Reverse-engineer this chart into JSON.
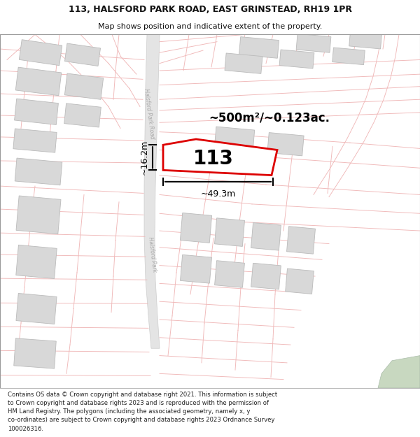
{
  "title_line1": "113, HALSFORD PARK ROAD, EAST GRINSTEAD, RH19 1PR",
  "title_line2": "Map shows position and indicative extent of the property.",
  "footer_text": "Contains OS data © Crown copyright and database right 2021. This information is subject to Crown copyright and database rights 2023 and is reproduced with the permission of\nHM Land Registry. The polygons (including the associated geometry, namely x, y co-ordinates) are subject to Crown copyright and database rights 2023 Ordnance Survey\n100026316.",
  "area_label": "~500m²/~0.123ac.",
  "property_number": "113",
  "dim_width": "~49.3m",
  "dim_height": "~16.2m",
  "road_label_upper": "Halsford Park Road",
  "road_label_lower": "Halsford Park",
  "map_bg": "#ffffff",
  "street_line_color": "#f0b8b8",
  "building_color": "#d8d8d8",
  "building_edge": "#bbbbbb",
  "property_fill": "#ffffff",
  "property_edge": "#dd0000",
  "dim_color": "#111111",
  "title_color": "#111111",
  "footer_color": "#222222",
  "road_fill": "#e8e8e8",
  "road_edge": "#cccccc",
  "green_color": "#c8d8c0"
}
